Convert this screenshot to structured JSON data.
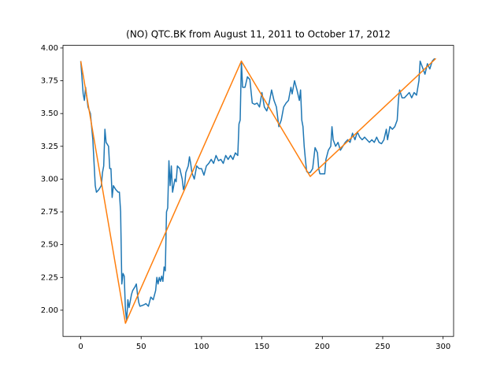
{
  "chart_data": {
    "type": "line",
    "title": "(NO) QTC.BK from August 11, 2011 to October 17, 2012",
    "xlim": [
      -14.7,
      308.7
    ],
    "ylim": [
      1.8,
      4.02
    ],
    "xticks": [
      0,
      50,
      100,
      150,
      200,
      250,
      300
    ],
    "yticks": [
      {
        "value": 2,
        "label": "2.00"
      },
      2.25,
      {
        "value": 2.5,
        "label": "2.50"
      },
      2.75,
      {
        "value": 3,
        "label": "3.00"
      },
      3.25,
      {
        "value": 3.5,
        "label": "3.50"
      },
      3.75,
      {
        "value": 4,
        "label": "4.00"
      }
    ],
    "series": [
      {
        "color": "#1f77b4",
        "x": [
          0,
          2,
          3,
          4,
          6,
          8,
          10,
          12,
          13,
          15,
          17,
          18,
          19,
          20,
          21,
          23,
          24,
          25,
          26,
          27,
          29,
          31,
          32,
          33,
          34,
          35,
          36,
          37,
          38,
          39,
          40,
          42,
          43,
          45,
          46,
          47,
          48,
          49,
          52,
          54,
          56,
          58,
          60,
          62,
          63,
          64,
          65,
          66,
          67,
          68,
          69,
          70,
          71,
          72,
          73,
          74,
          75,
          76,
          77,
          78,
          79,
          80,
          82,
          84,
          85,
          86,
          87,
          89,
          90,
          91,
          92,
          94,
          96,
          98,
          100,
          102,
          104,
          106,
          108,
          110,
          112,
          114,
          116,
          118,
          120,
          122,
          124,
          126,
          128,
          130,
          131,
          132,
          133,
          134,
          136,
          138,
          140,
          142,
          144,
          146,
          148,
          150,
          152,
          154,
          156,
          158,
          160,
          162,
          164,
          166,
          168,
          170,
          172,
          174,
          175,
          177,
          179,
          181,
          182,
          183,
          184,
          185,
          186,
          187,
          188,
          190,
          192,
          194,
          196,
          197,
          198,
          202,
          203,
          205,
          207,
          208,
          209,
          211,
          213,
          215,
          217,
          219,
          221,
          223,
          225,
          227,
          229,
          231,
          233,
          235,
          237,
          239,
          241,
          243,
          245,
          247,
          249,
          251,
          253,
          254,
          256,
          258,
          260,
          262,
          263,
          264,
          266,
          268,
          270,
          272,
          274,
          276,
          278,
          280,
          281,
          283,
          285,
          287,
          289,
          291,
          293
        ],
        "values": [
          3.9,
          3.65,
          3.6,
          3.7,
          3.55,
          3.5,
          3.3,
          2.95,
          2.9,
          2.92,
          2.95,
          3.05,
          3.1,
          3.38,
          3.28,
          3.25,
          3.08,
          3.08,
          2.86,
          2.95,
          2.92,
          2.9,
          2.9,
          2.75,
          2.2,
          2.28,
          2.26,
          2.0,
          1.92,
          2.08,
          2.02,
          2.12,
          2.15,
          2.18,
          2.2,
          2.12,
          2.06,
          2.03,
          2.04,
          2.05,
          2.03,
          2.1,
          2.08,
          2.15,
          2.25,
          2.2,
          2.25,
          2.22,
          2.26,
          2.22,
          2.33,
          2.3,
          2.75,
          2.78,
          3.14,
          2.95,
          3.1,
          2.9,
          2.95,
          3.0,
          2.98,
          3.1,
          3.08,
          3.0,
          2.92,
          2.95,
          3.05,
          3.1,
          3.17,
          3.12,
          3.05,
          3.0,
          3.1,
          3.08,
          3.08,
          3.03,
          3.1,
          3.12,
          3.15,
          3.12,
          3.18,
          3.14,
          3.15,
          3.12,
          3.18,
          3.15,
          3.18,
          3.15,
          3.2,
          3.18,
          3.42,
          3.45,
          3.9,
          3.7,
          3.7,
          3.78,
          3.76,
          3.58,
          3.57,
          3.58,
          3.55,
          3.66,
          3.55,
          3.52,
          3.58,
          3.68,
          3.6,
          3.55,
          3.4,
          3.45,
          3.55,
          3.58,
          3.6,
          3.7,
          3.65,
          3.75,
          3.68,
          3.6,
          3.68,
          3.45,
          3.4,
          3.25,
          3.15,
          3.06,
          3.05,
          3.05,
          3.08,
          3.24,
          3.2,
          3.08,
          3.04,
          3.04,
          3.15,
          3.22,
          3.25,
          3.4,
          3.3,
          3.25,
          3.28,
          3.22,
          3.25,
          3.28,
          3.3,
          3.28,
          3.35,
          3.3,
          3.36,
          3.32,
          3.3,
          3.32,
          3.3,
          3.28,
          3.3,
          3.28,
          3.32,
          3.28,
          3.27,
          3.3,
          3.38,
          3.3,
          3.4,
          3.38,
          3.4,
          3.45,
          3.6,
          3.68,
          3.62,
          3.62,
          3.64,
          3.66,
          3.62,
          3.66,
          3.64,
          3.75,
          3.9,
          3.85,
          3.8,
          3.88,
          3.84,
          3.9,
          3.92
        ]
      },
      {
        "color": "#ff7f0e",
        "x": [
          0,
          37,
          133,
          190,
          294
        ],
        "values": [
          3.9,
          1.9,
          3.9,
          3.02,
          3.92
        ]
      }
    ]
  }
}
